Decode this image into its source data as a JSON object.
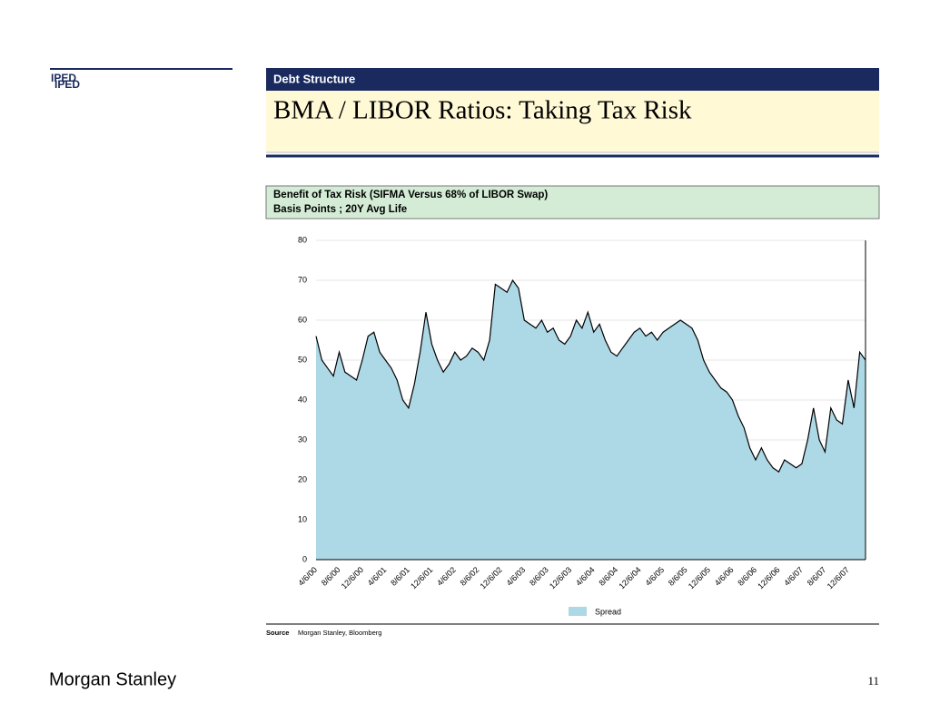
{
  "logo": "IPED",
  "header": {
    "section": "Debt Structure",
    "title": "BMA / LIBOR Ratios: Taking Tax Risk"
  },
  "chart_data": {
    "type": "area",
    "title": "Benefit of Tax Risk (SIFMA Versus 68% of LIBOR Swap)",
    "subtitle": "Basis Points ; 20Y Avg Life",
    "categories": [
      "4/6/00",
      null,
      null,
      null,
      "8/6/00",
      null,
      null,
      null,
      "12/6/00",
      null,
      null,
      null,
      "4/6/01",
      null,
      null,
      null,
      "8/6/01",
      null,
      null,
      null,
      "12/6/01",
      null,
      null,
      null,
      "4/6/02",
      null,
      null,
      null,
      "8/6/02",
      null,
      null,
      null,
      "12/6/02",
      null,
      null,
      null,
      "4/6/03",
      null,
      null,
      null,
      "8/6/03",
      null,
      null,
      null,
      "12/6/03",
      null,
      null,
      null,
      "4/6/04",
      null,
      null,
      null,
      "8/6/04",
      null,
      null,
      null,
      "12/6/04",
      null,
      null,
      null,
      "4/6/05",
      null,
      null,
      null,
      "8/6/05",
      null,
      null,
      null,
      "12/6/05",
      null,
      null,
      null,
      "4/6/06",
      null,
      null,
      null,
      "8/6/06",
      null,
      null,
      null,
      "12/6/06",
      null,
      null,
      null,
      "4/6/07",
      null,
      null,
      null,
      "8/6/07",
      null,
      null,
      null,
      "12/6/07",
      null,
      null,
      null
    ],
    "series": [
      {
        "name": "Spread",
        "color": "#add8e6",
        "line_color": "#000000",
        "values": [
          56,
          50,
          48,
          46,
          52,
          47,
          46,
          45,
          50,
          56,
          57,
          52,
          50,
          48,
          45,
          40,
          38,
          44,
          52,
          62,
          54,
          50,
          47,
          49,
          52,
          50,
          51,
          53,
          52,
          50,
          55,
          69,
          68,
          67,
          70,
          68,
          60,
          59,
          58,
          60,
          57,
          58,
          55,
          54,
          56,
          60,
          58,
          62,
          57,
          59,
          55,
          52,
          51,
          53,
          55,
          57,
          58,
          56,
          57,
          55,
          57,
          58,
          59,
          60,
          59,
          58,
          55,
          50,
          47,
          45,
          43,
          42,
          40,
          36,
          33,
          28,
          25,
          28,
          25,
          23,
          22,
          25,
          24,
          23,
          24,
          30,
          38,
          30,
          27,
          38,
          35,
          34,
          45,
          38,
          52,
          50
        ]
      }
    ],
    "ylim": [
      0,
      80
    ],
    "yticks": [
      0,
      10,
      20,
      30,
      40,
      50,
      60,
      70,
      80
    ],
    "grid": true
  },
  "source": {
    "label": "Source",
    "text": "Morgan Stanley, Bloomberg"
  },
  "footer": {
    "brand": "Morgan Stanley",
    "page": "11"
  }
}
